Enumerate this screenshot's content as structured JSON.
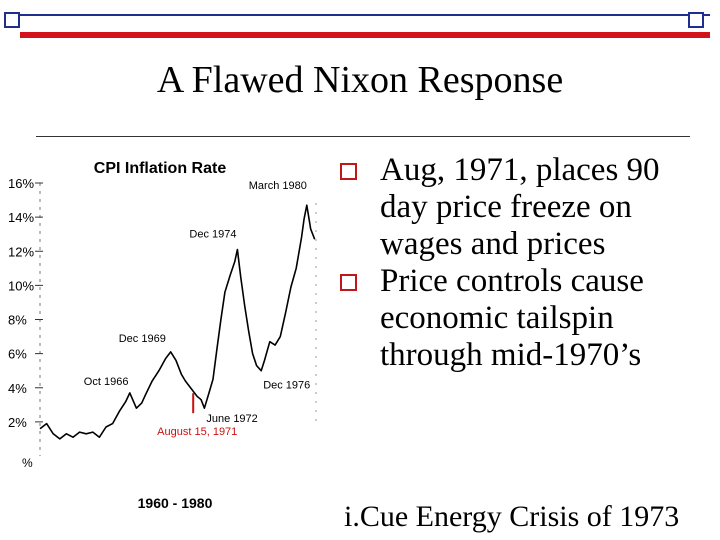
{
  "slide": {
    "title": "A Flawed Nixon Response",
    "bullets": [
      "Aug, 1971, places 90 day price freeze on wages and prices",
      "Price controls cause economic tailspin through mid-1970’s"
    ],
    "footer": "i.Cue Energy Crisis of 1973"
  },
  "colors": {
    "top_blue": "#1f2f8f",
    "top_red": "#d2131b",
    "bullet_red": "#c01818",
    "annotation_red": "#cc1111",
    "line": "#000000"
  },
  "chart_data": {
    "type": "line",
    "title": "CPI Inflation Rate",
    "xlabel": "1960 - 1980",
    "ylabel": "%",
    "ylim": [
      0,
      16
    ],
    "xlim": [
      1960,
      1980.9
    ],
    "yticks": [
      "2%",
      "4%",
      "6%",
      "8%",
      "10%",
      "12%",
      "14%",
      "16%"
    ],
    "ytick_values": [
      2,
      4,
      6,
      8,
      10,
      12,
      14,
      16
    ],
    "series": [
      {
        "x": [
          1960.0,
          1960.5,
          1961.0,
          1961.5,
          1962.0,
          1962.5,
          1963.0,
          1963.5,
          1964.0,
          1964.5,
          1965.0,
          1965.5,
          1966.0,
          1966.5,
          1966.8,
          1967.3,
          1967.7,
          1968.0,
          1968.5,
          1969.0,
          1969.5,
          1969.9,
          1970.3,
          1970.7,
          1971.0,
          1971.3,
          1971.6,
          1971.9,
          1972.2,
          1972.45,
          1972.8,
          1973.1,
          1973.4,
          1973.7,
          1974.0,
          1974.4,
          1974.75,
          1974.95,
          1975.2,
          1975.5,
          1975.8,
          1976.1,
          1976.4,
          1976.75,
          1977.0,
          1977.4,
          1977.8,
          1978.2,
          1978.6,
          1979.0,
          1979.4,
          1979.8,
          1980.0,
          1980.2,
          1980.5,
          1980.8
        ],
        "values": [
          1.6,
          1.9,
          1.3,
          1.0,
          1.3,
          1.1,
          1.4,
          1.3,
          1.4,
          1.1,
          1.7,
          1.9,
          2.6,
          3.2,
          3.7,
          2.8,
          3.1,
          3.6,
          4.4,
          5.0,
          5.7,
          6.1,
          5.6,
          4.8,
          4.4,
          4.1,
          3.8,
          3.5,
          3.3,
          2.8,
          3.7,
          4.5,
          6.3,
          8.0,
          9.6,
          10.6,
          11.4,
          12.1,
          10.5,
          8.8,
          7.3,
          6.0,
          5.3,
          5.0,
          5.6,
          6.7,
          6.5,
          7.0,
          8.4,
          9.9,
          11.0,
          12.8,
          13.9,
          14.7,
          13.3,
          12.7
        ]
      }
    ],
    "annotations": [
      {
        "label": "March 1980",
        "x": 1980.2,
        "y": 14.7,
        "color": "#000000"
      },
      {
        "label": "Dec 1974",
        "x": 1974.95,
        "y": 12.1,
        "color": "#000000"
      },
      {
        "label": "Dec 1969",
        "x": 1969.9,
        "y": 6.1,
        "color": "#000000"
      },
      {
        "label": "Oct 1966",
        "x": 1966.8,
        "y": 3.7,
        "color": "#000000"
      },
      {
        "label": "June 1972",
        "x": 1972.45,
        "y": 2.8,
        "color": "#000000"
      },
      {
        "label": "Dec 1976",
        "x": 1976.75,
        "y": 5.0,
        "color": "#000000"
      },
      {
        "label": "August 15, 1971",
        "x": 1971.6,
        "y": 3.8,
        "color": "#cc1111"
      }
    ],
    "grid": false,
    "legend": "none"
  }
}
